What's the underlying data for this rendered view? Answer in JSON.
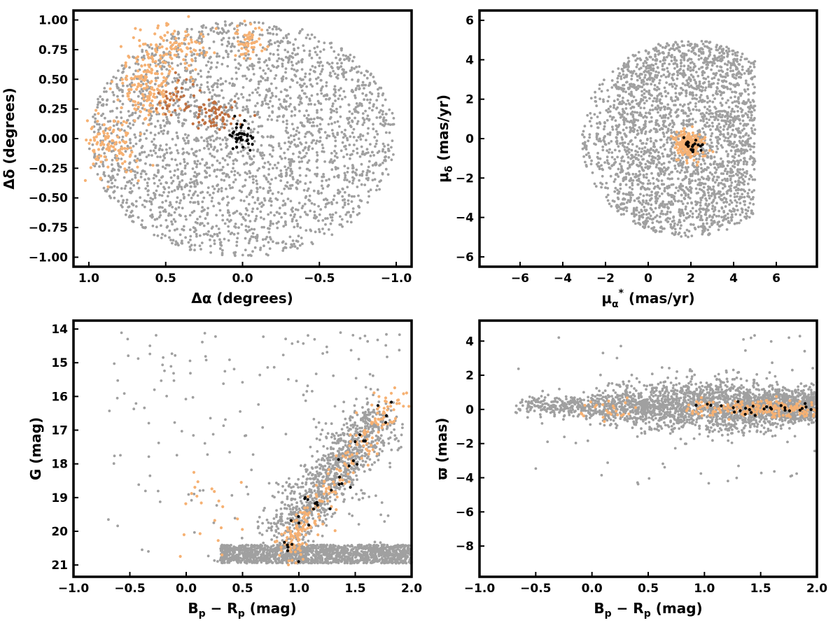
{
  "colors": {
    "field": "#a0a0a0",
    "group_light": "#f6b173",
    "group_dark": "#c07040",
    "cluster": "#000000"
  },
  "chart_data": [
    {
      "type": "scatter",
      "panel": "sky-position",
      "xlabel": "Δα (degrees)",
      "ylabel": "Δδ (degrees)",
      "xlim": [
        1.1,
        -1.1
      ],
      "ylim": [
        -1.08,
        1.08
      ],
      "xticks": [
        1.0,
        0.5,
        0.0,
        -0.5,
        -1.0
      ],
      "xtick_labels": [
        "1.0",
        "0.5",
        "0.0",
        "−0.5",
        "−1.0"
      ],
      "yticks": [
        1.0,
        0.75,
        0.5,
        0.25,
        0.0,
        -0.25,
        -0.5,
        -0.75,
        -1.0
      ],
      "ytick_labels": [
        "1.00",
        "0.75",
        "0.50",
        "0.25",
        "0.00",
        "−0.25",
        "−0.50",
        "−0.75",
        "−1.00"
      ],
      "grid": false,
      "series": [
        {
          "color": "#a0a0a0",
          "distribution": "uniform disk",
          "center": [
            0.0,
            0.0
          ],
          "radius_x": 1.0,
          "radius_y": 1.0,
          "count": 2600
        },
        {
          "color": "#f6b173",
          "clumps": [
            {
              "center": [
                0.88,
                -0.05
              ],
              "spread": [
                0.09,
                0.14
              ],
              "count": 110
            },
            {
              "center": [
                0.62,
                0.42
              ],
              "spread": [
                0.1,
                0.13
              ],
              "count": 150
            },
            {
              "center": [
                0.45,
                0.76
              ],
              "spread": [
                0.12,
                0.1
              ],
              "count": 110
            },
            {
              "center": [
                -0.05,
                0.82
              ],
              "spread": [
                0.05,
                0.08
              ],
              "count": 55
            }
          ]
        },
        {
          "color": "#c07040",
          "clumps": [
            {
              "center": [
                0.18,
                0.22
              ],
              "spread": [
                0.08,
                0.07
              ],
              "count": 60
            },
            {
              "center": [
                0.45,
                0.32
              ],
              "spread": [
                0.06,
                0.08
              ],
              "count": 35
            }
          ]
        },
        {
          "color": "#000000",
          "clumps": [
            {
              "center": [
                0.01,
                0.02
              ],
              "spread": [
                0.04,
                0.06
              ],
              "count": 40
            }
          ]
        }
      ]
    },
    {
      "type": "scatter",
      "panel": "proper-motion",
      "xlabel": "μα* (mas/yr)",
      "ylabel": "μδ (mas/yr)",
      "xlim": [
        -7.9,
        7.9
      ],
      "ylim": [
        -6.5,
        6.5
      ],
      "xticks": [
        -6,
        -4,
        -2,
        0,
        2,
        4,
        6
      ],
      "xtick_labels": [
        "−6",
        "−4",
        "−2",
        "0",
        "2",
        "4",
        "6"
      ],
      "yticks": [
        -6,
        -4,
        -2,
        0,
        2,
        4,
        6
      ],
      "ytick_labels": [
        "−6",
        "−4",
        "−2",
        "0",
        "2",
        "4",
        "6"
      ],
      "grid": false,
      "series": [
        {
          "color": "#a0a0a0",
          "distribution": "disk clipped",
          "center": [
            1.9,
            0.0
          ],
          "radius": 5.0,
          "clip_x": [
            -5.0,
            5.0
          ],
          "count": 2600
        },
        {
          "color": "#f6b173",
          "clumps": [
            {
              "center": [
                1.9,
                -0.3
              ],
              "spread": [
                0.32,
                0.35
              ],
              "count": 220
            }
          ]
        },
        {
          "color": "#000000",
          "clumps": [
            {
              "center": [
                2.0,
                -0.3
              ],
              "spread": [
                0.3,
                0.25
              ],
              "count": 20
            }
          ]
        }
      ]
    },
    {
      "type": "scatter",
      "panel": "color-magnitude",
      "xlabel": "Bp − Rp (mag)",
      "ylabel": "G (mag)",
      "xlim": [
        -1.0,
        2.0
      ],
      "ylim": [
        21.35,
        13.75
      ],
      "xticks": [
        -1.0,
        -0.5,
        0.0,
        0.5,
        1.0,
        1.5,
        2.0
      ],
      "xtick_labels": [
        "−1.0",
        "−0.5",
        "0.0",
        "0.5",
        "1.0",
        "1.5",
        "2.0"
      ],
      "yticks": [
        21,
        20,
        19,
        18,
        17,
        16,
        15,
        14
      ],
      "ytick_labels": [
        "21",
        "20",
        "19",
        "18",
        "17",
        "16",
        "15",
        "14"
      ],
      "grid": false,
      "series": [
        {
          "color": "#a0a0a0",
          "distribution": "main sequence + faint band",
          "count": 2600
        },
        {
          "color": "#f6b173",
          "distribution": "main sequence ridge",
          "count": 260
        },
        {
          "color": "#000000",
          "distribution": "main sequence ridge",
          "count": 35
        }
      ]
    },
    {
      "type": "scatter",
      "panel": "parallax",
      "xlabel": "Bp − Rp (mag)",
      "ylabel": "ϖ (mas)",
      "xlim": [
        -1.0,
        2.0
      ],
      "ylim": [
        -9.8,
        5.2
      ],
      "xticks": [
        -1.0,
        -0.5,
        0.0,
        0.5,
        1.0,
        1.5,
        2.0
      ],
      "xtick_labels": [
        "−1.0",
        "−0.5",
        "0.0",
        "0.5",
        "1.0",
        "1.5",
        "2.0"
      ],
      "yticks": [
        4,
        2,
        0,
        -2,
        -4,
        -6,
        -8
      ],
      "ytick_labels": [
        "4",
        "2",
        "0",
        "−2",
        "−4",
        "−6",
        "−8"
      ],
      "grid": false,
      "series": [
        {
          "color": "#a0a0a0",
          "distribution": "band around 0",
          "count": 2600
        },
        {
          "color": "#f6b173",
          "distribution": "band around 0",
          "count": 230
        },
        {
          "color": "#000000",
          "distribution": "band around 0",
          "count": 30
        }
      ]
    }
  ]
}
